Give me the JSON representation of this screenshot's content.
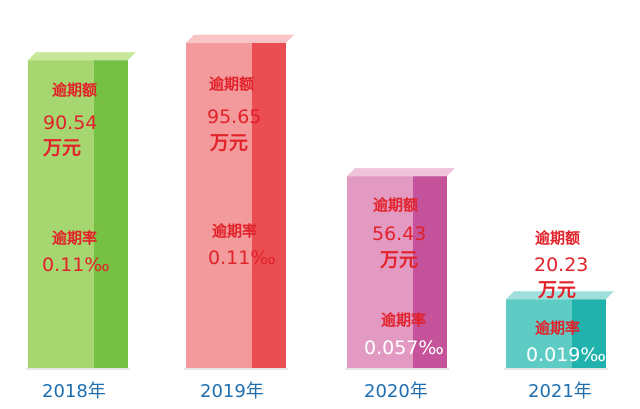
{
  "chart_data": {
    "type": "bar",
    "title": "",
    "xlabel": "",
    "ylabel": "",
    "categories": [
      "2018年",
      "2019年",
      "2020年",
      "2021年"
    ],
    "series": [
      {
        "values": [
          90.54,
          95.65,
          56.43,
          20.23
        ]
      }
    ],
    "amount_title": "逾期额",
    "amount_labels": [
      "90.54",
      "95.65",
      "56.43",
      "20.23"
    ],
    "amount_unit": "万元",
    "rate_title": "逾期率",
    "rate_labels": [
      "0.11‰",
      "0.11‰",
      "0.057‰",
      "0.019‰"
    ],
    "ylim": [
      0,
      100
    ],
    "grid": false,
    "legend": "none",
    "colors": [
      {
        "front": "#a6d66f",
        "side": "#76c043",
        "top": "#c7e89a"
      },
      {
        "front": "#f39a9c",
        "side": "#ea4d52",
        "top": "#f8c4c5"
      },
      {
        "front": "#e39ac2",
        "side": "#c5539b",
        "top": "#f0c3dc"
      },
      {
        "front": "#5fcbc5",
        "side": "#21b2ad",
        "top": "#9fe0dc"
      }
    ],
    "label_color": "#e2222a",
    "year_color": "#1f6fb0"
  }
}
